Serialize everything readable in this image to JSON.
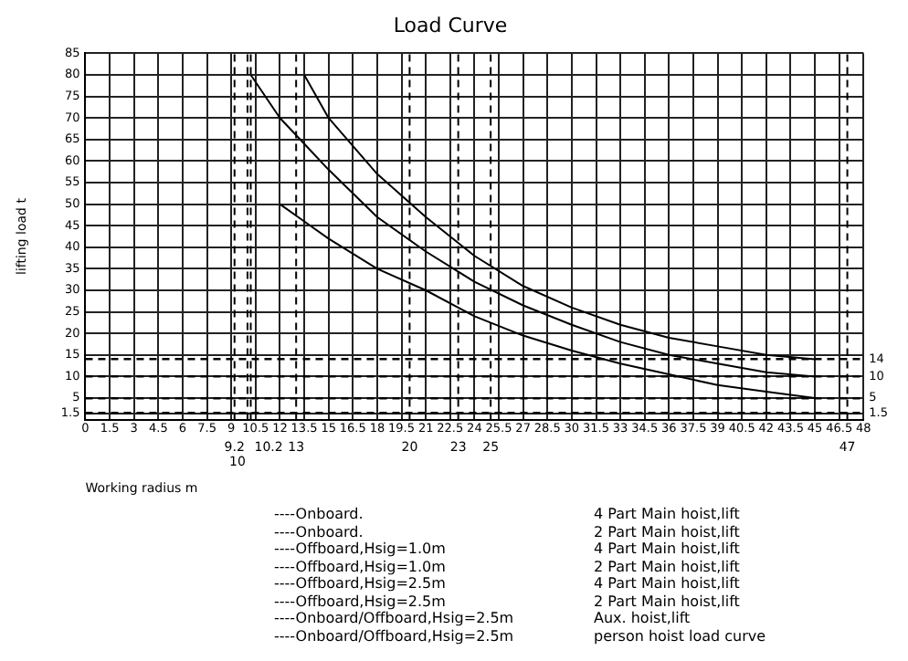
{
  "chart_data": {
    "type": "line",
    "title": "Load Curve",
    "xlabel": "Working radius m",
    "ylabel": "lifting load t",
    "xlim": [
      0,
      48
    ],
    "xticks": [
      0,
      1.5,
      3,
      4.5,
      6,
      7.5,
      9,
      10.5,
      12,
      13.5,
      15,
      16.5,
      18,
      19.5,
      21,
      22.5,
      24,
      25.5,
      27,
      28.5,
      30,
      31.5,
      33,
      34.5,
      36,
      37.5,
      39,
      40.5,
      42,
      43.5,
      45,
      46.5,
      48
    ],
    "ylim": [
      0,
      85
    ],
    "yticks": [
      1.5,
      5,
      10,
      15,
      20,
      25,
      30,
      35,
      40,
      45,
      50,
      55,
      60,
      65,
      70,
      75,
      80,
      85
    ],
    "grid": true,
    "legend": false,
    "marker": "none",
    "line_style": "solid",
    "series": [
      {
        "color": "#000000",
        "x": [
          13.5,
          15,
          18,
          21,
          24,
          27,
          30,
          33,
          36,
          39,
          42,
          45
        ],
        "values": [
          80,
          70,
          57,
          47,
          38,
          31,
          26,
          22,
          19,
          17,
          15,
          14
        ]
      },
      {
        "color": "#000000",
        "x": [
          10.2,
          12,
          13.5,
          15,
          18,
          21,
          24,
          27,
          30,
          33,
          36,
          39,
          42,
          45
        ],
        "values": [
          80,
          70,
          64,
          58,
          47,
          39,
          32,
          26.5,
          22,
          18,
          15,
          13,
          11,
          10
        ]
      },
      {
        "color": "#000000",
        "x": [
          12,
          13.5,
          15,
          18,
          21,
          24,
          27,
          30,
          33,
          36,
          39,
          42,
          45
        ],
        "values": [
          50,
          46,
          42,
          35,
          30,
          24,
          19.5,
          16,
          13,
          10.5,
          8,
          6.5,
          5
        ]
      }
    ],
    "ref_lines": [
      {
        "axis": "x",
        "value": 9.2,
        "label": "9.2",
        "line_style": "dashed"
      },
      {
        "axis": "x",
        "value": 10,
        "label": "10",
        "line_style": "dashed"
      },
      {
        "axis": "x",
        "value": 10.2,
        "label": "10.2",
        "line_style": "dashed"
      },
      {
        "axis": "x",
        "value": 13,
        "label": "13",
        "line_style": "dashed"
      },
      {
        "axis": "x",
        "value": 20,
        "label": "20",
        "line_style": "dashed"
      },
      {
        "axis": "x",
        "value": 23,
        "label": "23",
        "line_style": "dashed"
      },
      {
        "axis": "x",
        "value": 25,
        "label": "25",
        "line_style": "dashed"
      },
      {
        "axis": "x",
        "value": 47,
        "label": "47",
        "line_style": "dashed"
      }
    ],
    "y2lim": [
      0,
      85
    ],
    "y2ticks": [
      1.5,
      5,
      10,
      14
    ],
    "annotations": [
      "----Onboard.",
      "4 Part Main hoist,lift",
      "----Onboard.",
      "2 Part Main hoist,lift",
      "----Offboard,Hsig=1.0m",
      "4 Part Main hoist,lift",
      "----Offboard,Hsig=1.0m",
      "2 Part Main hoist,lift",
      "----Offboard,Hsig=2.5m",
      "4 Part Main hoist,lift",
      "----Offboard,Hsig=2.5m",
      "2 Part Main hoist,lift",
      "----Onboard/Offboard,Hsig=2.5m",
      "Aux. hoist,lift",
      "----Onboard/Offboard,Hsig=2.5m",
      "person hoist load curve"
    ]
  }
}
